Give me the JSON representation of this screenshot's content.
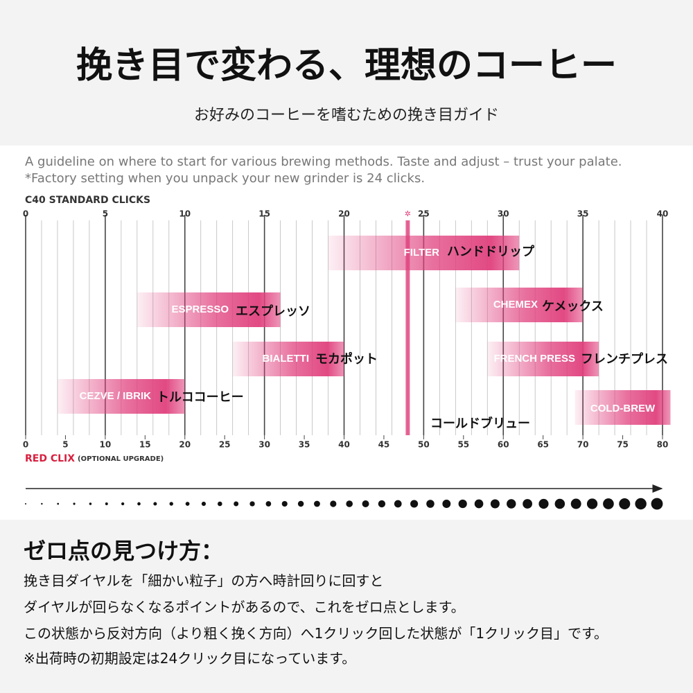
{
  "header": {
    "title": "挽き目で変わる、理想のコーヒー",
    "subtitle": "お好みのコーヒーを嗜むための挽き目ガイド"
  },
  "chart_data": {
    "type": "range",
    "notes": [
      "A guideline on where to start for various brewing methods. Taste and adjust – trust your palate.",
      "*Factory setting when you unpack your new grinder is 24 clicks."
    ],
    "x_label": "C40 STANDARD CLICKS",
    "x2_label": "RED CLIX",
    "x2_label_note": "(OPTIONAL UPGRADE)",
    "xlim": [
      0,
      40
    ],
    "xticks": [
      0,
      5,
      10,
      15,
      20,
      25,
      30,
      35,
      40
    ],
    "x2lim": [
      0,
      80
    ],
    "x2ticks": [
      0,
      5,
      10,
      15,
      20,
      25,
      30,
      35,
      40,
      45,
      50,
      55,
      60,
      65,
      70,
      75,
      80
    ],
    "minor_grid": true,
    "color": "#e0407d",
    "factory_marker": {
      "value": 24,
      "label": "✲"
    },
    "bars": [
      {
        "label": "FILTER",
        "label_ja": "ハンドドリップ",
        "start": 19,
        "end": 31
      },
      {
        "label": "ESPRESSO",
        "label_ja": "エスプレッソ",
        "start": 7,
        "end": 16
      },
      {
        "label": "CHEMEX",
        "label_ja": "ケメックス",
        "start": 27,
        "end": 35
      },
      {
        "label": "BIALETTI",
        "label_ja": "モカポット",
        "start": 13,
        "end": 20
      },
      {
        "label": "FRENCH PRESS",
        "label_ja": "フレンチプレス",
        "start": 29,
        "end": 36
      },
      {
        "label": "CEZVE / IBRIK",
        "label_ja": "トルココーヒー",
        "start": 2,
        "end": 10
      },
      {
        "label": "COLD-BREW",
        "label_ja": "コールドブリュー",
        "start": 34.5,
        "end": 40.5
      }
    ]
  },
  "footer": {
    "heading": "ゼロ点の見つけ方：",
    "lines": [
      "挽き目ダイヤルを「細かい粒子」の方へ時計回りに回すと",
      "ダイヤルが回らなくなるポイントがあるので、これをゼロ点とします。",
      "この状態から反対方向（より粗く挽く方向）へ1クリック回した状態が「1クリック目」です。",
      "※出荷時の初期設定は24クリック目になっています。"
    ]
  }
}
